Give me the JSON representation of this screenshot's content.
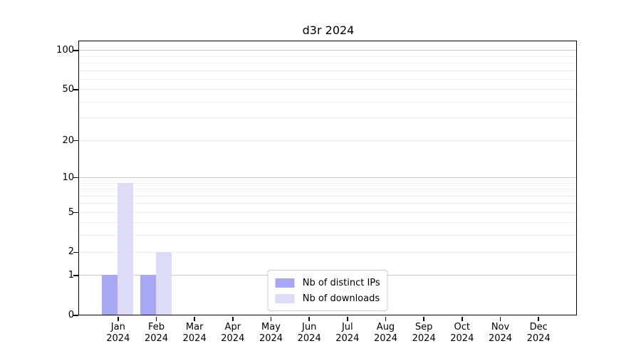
{
  "title": "d3r 2024",
  "chart_data": {
    "type": "bar",
    "title": "d3r 2024",
    "categories": [
      "Jan",
      "Feb",
      "Mar",
      "Apr",
      "May",
      "Jun",
      "Jul",
      "Aug",
      "Sep",
      "Oct",
      "Nov",
      "Dec"
    ],
    "category_year": "2024",
    "series": [
      {
        "name": "Nb of distinct IPs",
        "color": "#a7a7f3",
        "values": [
          1,
          1,
          0,
          0,
          0,
          0,
          0,
          0,
          0,
          0,
          0,
          0
        ]
      },
      {
        "name": "Nb of downloads",
        "color": "#dcdcf9",
        "values": [
          9,
          2,
          0,
          0,
          0,
          0,
          0,
          0,
          0,
          0,
          0,
          0
        ]
      }
    ],
    "y_scale": "log1p",
    "ylim": [
      0,
      116
    ],
    "y_ticks": [
      0,
      1,
      2,
      5,
      10,
      20,
      50,
      100
    ],
    "y_decade_gridlines": [
      1,
      10,
      100
    ],
    "y_minor_gridlines": [
      2,
      3,
      4,
      5,
      6,
      7,
      8,
      9,
      20,
      30,
      40,
      50,
      60,
      70,
      80,
      90
    ],
    "grid": true,
    "legend_position": "lower center",
    "xlabel": "",
    "ylabel": ""
  },
  "colors": {
    "background": "#ffffff",
    "axis": "#000000",
    "major_grid": "#c8c8c8",
    "minor_grid": "#efefef"
  }
}
